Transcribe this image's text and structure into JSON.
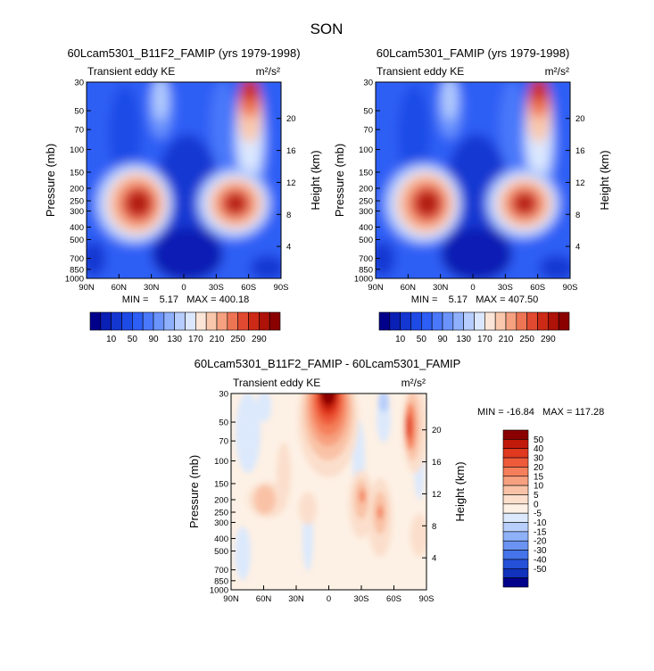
{
  "figure_title": "SON",
  "panels": [
    {
      "id": "left",
      "title": "60Lcam5301_B11F2_FAMIP (yrs 1979-1998)",
      "left_label": "Transient eddy KE",
      "units_label": "m²/s²",
      "stats": "MIN =    5.17   MAX = 400.18"
    },
    {
      "id": "right",
      "title": "60Lcam5301_FAMIP (yrs 1979-1998)",
      "left_label": "Transient eddy KE",
      "units_label": "m²/s²",
      "stats": "MIN =    5.17   MAX = 407.50"
    },
    {
      "id": "diff",
      "title": "60Lcam5301_B11F2_FAMIP - 60Lcam5301_FAMIP",
      "left_label": "Transient eddy KE",
      "units_label": "m²/s²",
      "stats": "MIN = -16.84   MAX = 117.28"
    }
  ],
  "chart_data": [
    {
      "type": "heatmap",
      "panel": "left",
      "title": "60Lcam5301_B11F2_FAMIP (yrs 1979-1998)",
      "subtitle_left": "Transient eddy KE",
      "units": "m²/s²",
      "xlabel": "",
      "ylabel": "Pressure (mb)",
      "ylabel_right": "Height (km)",
      "x_ticks": [
        "90N",
        "60N",
        "30N",
        "0",
        "30S",
        "60S",
        "90S"
      ],
      "x_tick_values": [
        90,
        60,
        30,
        0,
        -30,
        -60,
        -90
      ],
      "y_ticks": [
        30,
        50,
        70,
        100,
        150,
        200,
        250,
        300,
        400,
        500,
        700,
        850,
        1000
      ],
      "y_scale": "log",
      "y_right_ticks": [
        4,
        8,
        12,
        16,
        20
      ],
      "min": 5.17,
      "max": 400.18,
      "colorbar_levels": [
        10,
        50,
        90,
        130,
        170,
        210,
        250,
        290
      ],
      "colors": [
        "#00008b",
        "#0a1fb4",
        "#1437d2",
        "#1e4be6",
        "#2d5ef5",
        "#4a78fa",
        "#6a93fc",
        "#8fb0fd",
        "#b6cdfd",
        "#dbe7fe",
        "#fbe5d6",
        "#f9c7ac",
        "#f5a07f",
        "#ee7554",
        "#e14a30",
        "#cc2a16",
        "#ae1208",
        "#8a0000"
      ],
      "features": [
        {
          "lat": 50,
          "p": 275,
          "value": 290,
          "note": "NH upper-tropospheric jet maximum"
        },
        {
          "lat": -50,
          "p": 275,
          "value": 290,
          "note": "SH upper-tropospheric jet maximum"
        },
        {
          "lat": -62,
          "p": 32,
          "value": 290,
          "note": "SH stratospheric maximum"
        },
        {
          "lat": 0,
          "p": 600,
          "value": 10,
          "note": "tropical minimum"
        }
      ]
    },
    {
      "type": "heatmap",
      "panel": "right",
      "title": "60Lcam5301_FAMIP (yrs 1979-1998)",
      "subtitle_left": "Transient eddy KE",
      "units": "m²/s²",
      "xlabel": "",
      "ylabel": "Pressure (mb)",
      "ylabel_right": "Height (km)",
      "x_ticks": [
        "90N",
        "60N",
        "30N",
        "0",
        "30S",
        "60S",
        "90S"
      ],
      "x_tick_values": [
        90,
        60,
        30,
        0,
        -30,
        -60,
        -90
      ],
      "y_ticks": [
        30,
        50,
        70,
        100,
        150,
        200,
        250,
        300,
        400,
        500,
        700,
        850,
        1000
      ],
      "y_scale": "log",
      "y_right_ticks": [
        4,
        8,
        12,
        16,
        20
      ],
      "min": 5.17,
      "max": 407.5,
      "colorbar_levels": [
        10,
        50,
        90,
        130,
        170,
        210,
        250,
        290
      ],
      "colors": [
        "#00008b",
        "#0a1fb4",
        "#1437d2",
        "#1e4be6",
        "#2d5ef5",
        "#4a78fa",
        "#6a93fc",
        "#8fb0fd",
        "#b6cdfd",
        "#dbe7fe",
        "#fbe5d6",
        "#f9c7ac",
        "#f5a07f",
        "#ee7554",
        "#e14a30",
        "#cc2a16",
        "#ae1208",
        "#8a0000"
      ],
      "features": [
        {
          "lat": 50,
          "p": 275,
          "value": 290,
          "note": "NH upper-tropospheric jet maximum"
        },
        {
          "lat": -50,
          "p": 275,
          "value": 290,
          "note": "SH upper-tropospheric jet maximum"
        },
        {
          "lat": -62,
          "p": 32,
          "value": 290,
          "note": "SH stratospheric maximum"
        },
        {
          "lat": 0,
          "p": 600,
          "value": 10,
          "note": "tropical minimum"
        }
      ]
    },
    {
      "type": "heatmap",
      "panel": "diff",
      "title": "60Lcam5301_B11F2_FAMIP - 60Lcam5301_FAMIP",
      "subtitle_left": "Transient eddy KE",
      "units": "m²/s²",
      "xlabel": "",
      "ylabel": "Pressure (mb)",
      "ylabel_right": "Height (km)",
      "x_ticks": [
        "90N",
        "60N",
        "30N",
        "0",
        "30S",
        "60S",
        "90S"
      ],
      "x_tick_values": [
        90,
        60,
        30,
        0,
        -30,
        -60,
        -90
      ],
      "y_ticks": [
        30,
        50,
        70,
        100,
        150,
        200,
        250,
        300,
        400,
        500,
        700,
        850,
        1000
      ],
      "y_scale": "log",
      "y_right_ticks": [
        4,
        8,
        12,
        16,
        20
      ],
      "min": -16.84,
      "max": 117.28,
      "colorbar_levels": [
        50,
        40,
        30,
        20,
        15,
        10,
        5,
        0,
        -5,
        -10,
        -15,
        -20,
        -30,
        -40,
        -50
      ],
      "colors": [
        "#8a0000",
        "#c21a0a",
        "#e0391f",
        "#ee5a3a",
        "#f47f5a",
        "#f7a07f",
        "#f9c2a6",
        "#fbdfcc",
        "#fdf0e4",
        "#dce9fc",
        "#b8cffb",
        "#8fb1f8",
        "#6a93f2",
        "#4473ea",
        "#2550d8",
        "#1032bd",
        "#00008b"
      ],
      "features": [
        {
          "lat": 0,
          "p": 35,
          "value": 50,
          "note": "equatorial stratospheric maximum"
        },
        {
          "lat": -68,
          "p": 45,
          "value": 30,
          "note": "SH high-latitude positive"
        },
        {
          "lat": -48,
          "p": 270,
          "value": 15,
          "note": "SH tropospheric positive"
        },
        {
          "lat": -30,
          "p": 220,
          "value": 10,
          "note": "subtropical positive"
        },
        {
          "lat": -47,
          "p": 32,
          "value": -5,
          "note": "small negative near top"
        },
        {
          "lat": 70,
          "p": 70,
          "value": -5,
          "note": "NH high-latitude negative"
        }
      ]
    }
  ]
}
